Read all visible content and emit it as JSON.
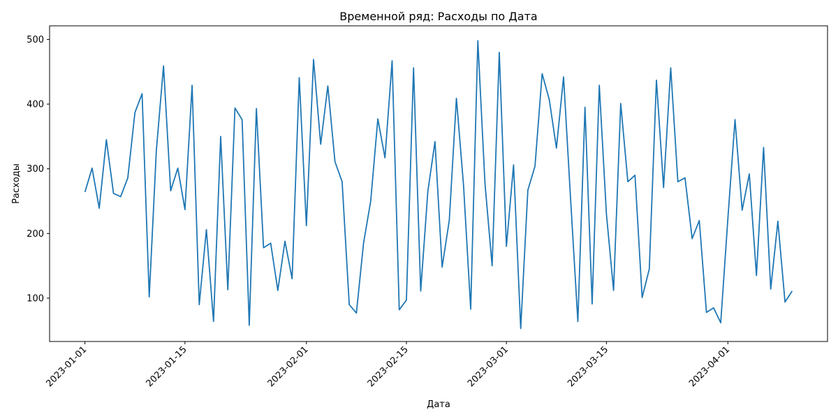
{
  "chart_data": {
    "type": "line",
    "title": "Временной ряд: Расходы по Дата",
    "xlabel": "Дата",
    "ylabel": "Расходы",
    "x_start": "2023-01-01",
    "x_end": "2023-04-10",
    "x_ticks": [
      "2023-01-01",
      "2023-01-15",
      "2023-02-01",
      "2023-02-15",
      "2023-03-01",
      "2023-03-15",
      "2023-04-01"
    ],
    "y_ticks": [
      100,
      200,
      300,
      400,
      500
    ],
    "ylim": [
      33,
      521
    ],
    "grid": false,
    "line_color": "#1f77b4",
    "series": [
      {
        "values": [
          264,
          301,
          239,
          345,
          262,
          257,
          286,
          387,
          416,
          102,
          329,
          459,
          266,
          301,
          237,
          429,
          90,
          206,
          64,
          350,
          113,
          394,
          376,
          58,
          393,
          178,
          185,
          112,
          188,
          130,
          441,
          212,
          469,
          338,
          428,
          311,
          280,
          90,
          77,
          185,
          250,
          377,
          317,
          467,
          82,
          97,
          456,
          111,
          265,
          342,
          148,
          220,
          409,
          274,
          83,
          498,
          277,
          150,
          480,
          180,
          306,
          53,
          267,
          304,
          447,
          407,
          332,
          442,
          250,
          64,
          395,
          91,
          429,
          230,
          112,
          401,
          280,
          290,
          101,
          145,
          437,
          271,
          456,
          280,
          286,
          192,
          220,
          78,
          85,
          62,
          223,
          376,
          236,
          292,
          135,
          333,
          114,
          219,
          94,
          111
        ]
      }
    ]
  }
}
